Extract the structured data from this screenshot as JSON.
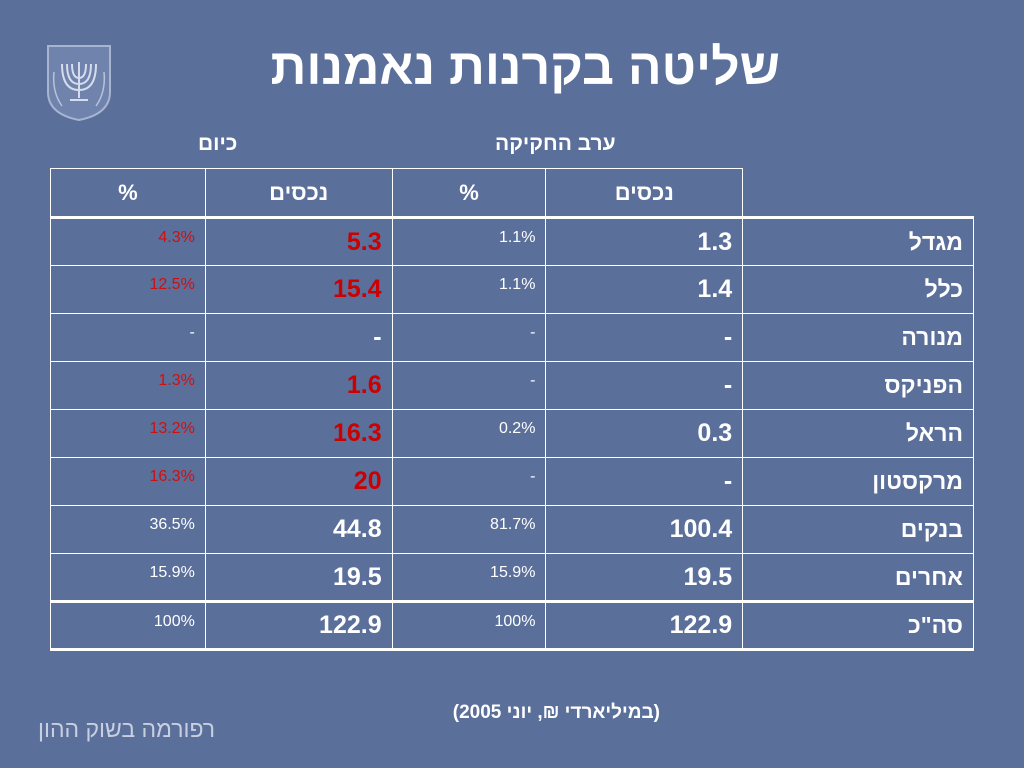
{
  "title": "שליטה בקרנות נאמנות",
  "group_headers": {
    "today": "כיום",
    "eve_of_legislation": "ערב החקיקה"
  },
  "column_headers": {
    "today_pct": "%",
    "today_assets": "נכסים",
    "eve_pct": "%",
    "eve_assets": "נכסים"
  },
  "rows": [
    {
      "name": "מגדל",
      "eve_assets": "1.3",
      "eve_pct": "1.1%",
      "today_assets": "5.3",
      "today_pct": "4.3%",
      "highlight": true
    },
    {
      "name": "כלל",
      "eve_assets": "1.4",
      "eve_pct": "1.1%",
      "today_assets": "15.4",
      "today_pct": "12.5%",
      "highlight": true
    },
    {
      "name": "מנורה",
      "eve_assets": "-",
      "eve_pct": "-",
      "today_assets": "-",
      "today_pct": "-",
      "highlight": false
    },
    {
      "name": "הפניקס",
      "eve_assets": "-",
      "eve_pct": "-",
      "today_assets": "1.6",
      "today_pct": "1.3%",
      "highlight": true
    },
    {
      "name": "הראל",
      "eve_assets": "0.3",
      "eve_pct": "0.2%",
      "today_assets": "16.3",
      "today_pct": "13.2%",
      "highlight": true
    },
    {
      "name": "מרקסטון",
      "eve_assets": "-",
      "eve_pct": "-",
      "today_assets": "20",
      "today_pct": "16.3%",
      "highlight": true
    },
    {
      "name": "בנקים",
      "eve_assets": "100.4",
      "eve_pct": "81.7%",
      "today_assets": "44.8",
      "today_pct": "36.5%",
      "highlight": false
    },
    {
      "name": "אחרים",
      "eve_assets": "19.5",
      "eve_pct": "15.9%",
      "today_assets": "19.5",
      "today_pct": "15.9%",
      "highlight": false
    }
  ],
  "total": {
    "name": "סה\"כ",
    "eve_assets": "122.9",
    "eve_pct": "100%",
    "today_assets": "122.9",
    "today_pct": "100%"
  },
  "footnote": "(במיליארדי ₪, יוני 2005)",
  "brand": "רפורמה בשוק ההון",
  "colors": {
    "background": "#5b6f9b",
    "highlight": "#cc0000",
    "text": "#ffffff"
  },
  "icons": {
    "emblem": "state-emblem-menorah-icon"
  }
}
